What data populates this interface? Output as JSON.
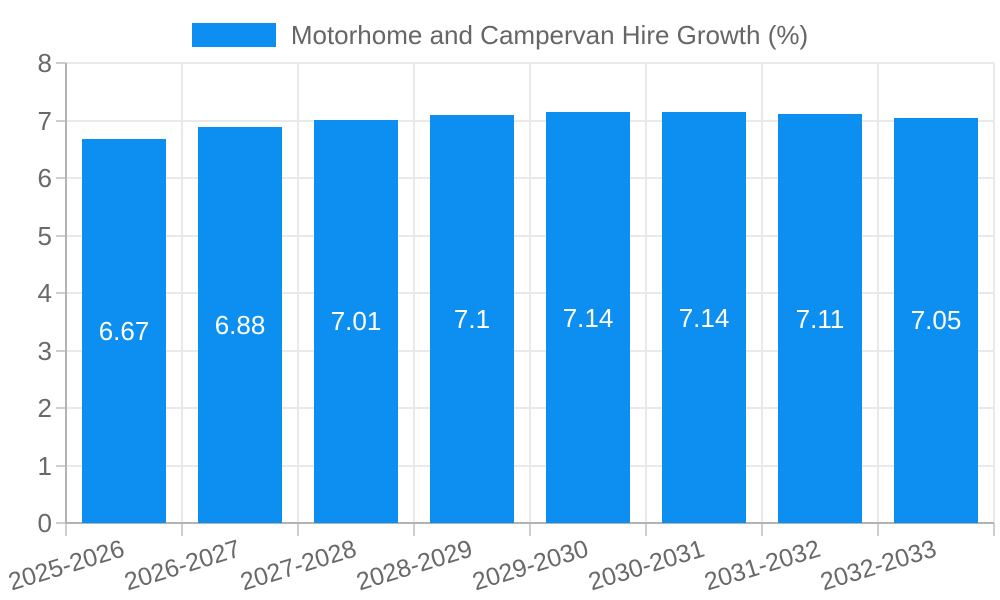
{
  "chart_data": {
    "type": "bar",
    "title": "",
    "legend_label": "Motorhome and Campervan Hire Growth (%)",
    "legend_position": "top",
    "categories": [
      "2025-2026",
      "2026-2027",
      "2027-2028",
      "2028-2029",
      "2029-2030",
      "2030-2031",
      "2031-2032",
      "2032-2033"
    ],
    "values": [
      6.67,
      6.88,
      7.01,
      7.1,
      7.14,
      7.14,
      7.11,
      7.05
    ],
    "value_labels": [
      "6.67",
      "6.88",
      "7.01",
      "7.1",
      "7.14",
      "7.14",
      "7.11",
      "7.05"
    ],
    "xlabel": "",
    "ylabel": "",
    "ylim": [
      0,
      8
    ],
    "y_ticks": [
      0,
      1,
      2,
      3,
      4,
      5,
      6,
      7,
      8
    ],
    "grid": true,
    "colors": {
      "bar": "#0d8ff2",
      "bar_label": "#ffffff",
      "tick_text": "#696969",
      "legend_text": "#666666",
      "gridline": "#e9e9e9",
      "axis_line": "#b3b3b3",
      "tick_mark": "#cfcfcf",
      "background": "#ffffff"
    }
  }
}
